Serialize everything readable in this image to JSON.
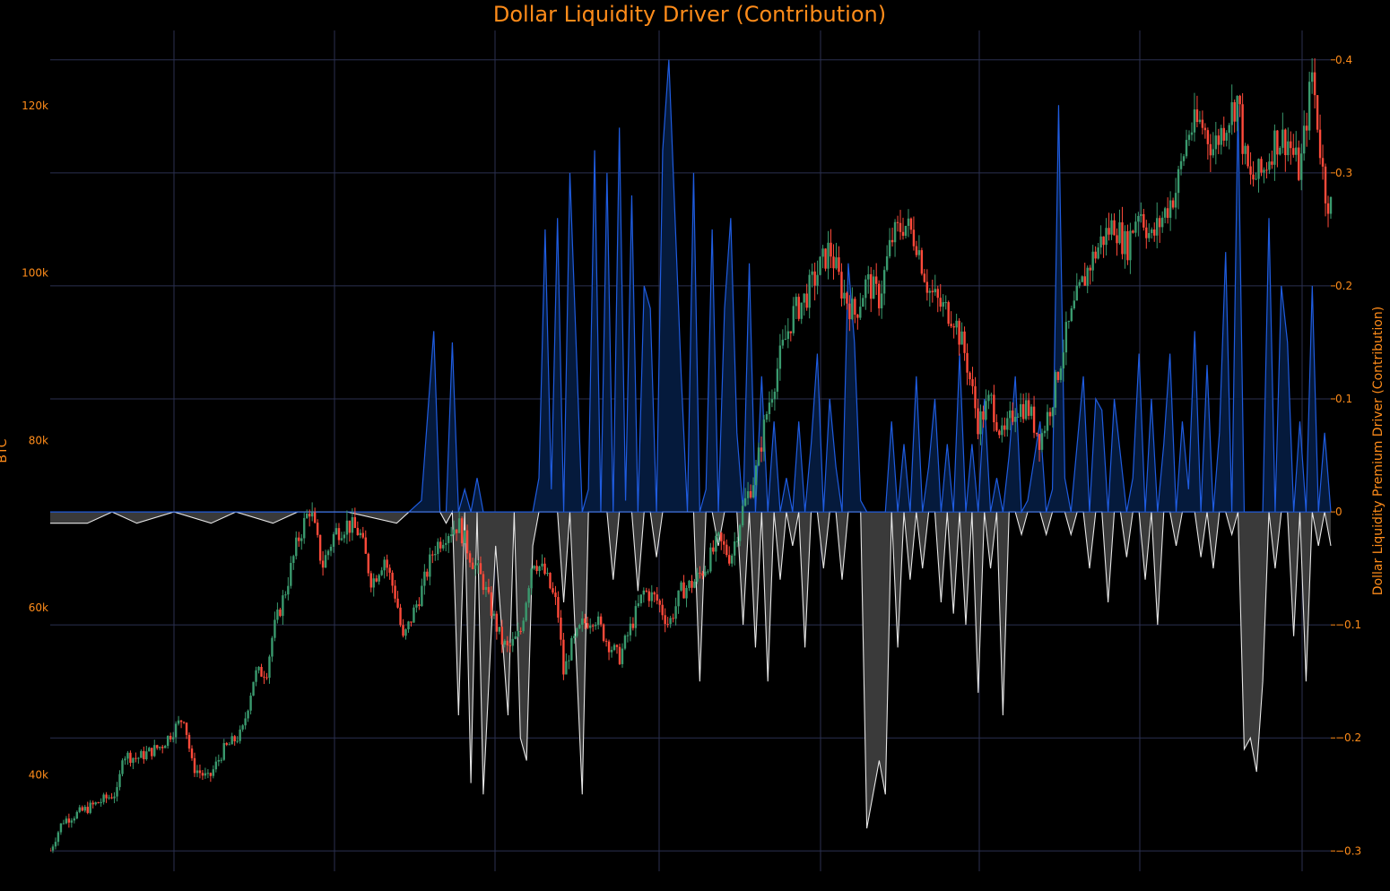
{
  "chart_data": {
    "type": "candlestick+area",
    "title": "Dollar Liquidity Driver (Contribution)",
    "y_left_label": "BTC",
    "y_right_label": "Dollar Liquidity Premium Driver (Contribution)",
    "y_left_ticks": [
      "40k",
      "60k",
      "80k",
      "100k",
      "120k"
    ],
    "y_left_tick_values": [
      40000,
      60000,
      80000,
      100000,
      120000
    ],
    "y_right_ticks": [
      "−0.3",
      "−0.2",
      "−0.1",
      "0",
      "0.1",
      "0.2",
      "0.3",
      "0.4"
    ],
    "y_right_tick_values": [
      -0.3,
      -0.2,
      -0.1,
      0,
      0.1,
      0.2,
      0.3,
      0.4
    ],
    "y_left_range": [
      28500,
      129000
    ],
    "y_right_range": [
      -0.318,
      0.426
    ],
    "grid": true,
    "colors": {
      "increasing": "#3a9a6e",
      "decreasing": "#ff4a3a",
      "positive_line": "#1f5ce0",
      "positive_fill": "#051a3c",
      "negative_line": "#e6e6e6",
      "negative_fill": "#3a3a3a",
      "grid": "#2b3050",
      "axis_text": "#ff8c1a"
    },
    "btc_price_path": [
      [
        0,
        31000
      ],
      [
        0.01,
        34500
      ],
      [
        0.03,
        36000
      ],
      [
        0.055,
        38000
      ],
      [
        0.058,
        42500
      ],
      [
        0.07,
        42000
      ],
      [
        0.09,
        43500
      ],
      [
        0.108,
        47000
      ],
      [
        0.115,
        41000
      ],
      [
        0.128,
        39500
      ],
      [
        0.14,
        43000
      ],
      [
        0.155,
        45000
      ],
      [
        0.165,
        52000
      ],
      [
        0.175,
        52500
      ],
      [
        0.18,
        57000
      ],
      [
        0.19,
        62000
      ],
      [
        0.2,
        68000
      ],
      [
        0.21,
        72000
      ],
      [
        0.22,
        65000
      ],
      [
        0.23,
        69000
      ],
      [
        0.24,
        70000
      ],
      [
        0.25,
        69000
      ],
      [
        0.26,
        63000
      ],
      [
        0.27,
        66000
      ],
      [
        0.28,
        61000
      ],
      [
        0.285,
        56000
      ],
      [
        0.3,
        62000
      ],
      [
        0.31,
        67000
      ],
      [
        0.32,
        69000
      ],
      [
        0.33,
        70000
      ],
      [
        0.34,
        66000
      ],
      [
        0.35,
        63000
      ],
      [
        0.36,
        58000
      ],
      [
        0.365,
        56000
      ],
      [
        0.37,
        55000
      ],
      [
        0.38,
        57000
      ],
      [
        0.39,
        66000
      ],
      [
        0.4,
        64000
      ],
      [
        0.41,
        60000
      ],
      [
        0.415,
        52000
      ],
      [
        0.42,
        55000
      ],
      [
        0.43,
        58000
      ],
      [
        0.44,
        59000
      ],
      [
        0.45,
        56000
      ],
      [
        0.46,
        54000
      ],
      [
        0.47,
        58000
      ],
      [
        0.48,
        62000
      ],
      [
        0.49,
        61000
      ],
      [
        0.5,
        58000
      ],
      [
        0.51,
        62000
      ],
      [
        0.52,
        63000
      ],
      [
        0.53,
        65000
      ],
      [
        0.54,
        68000
      ],
      [
        0.55,
        66000
      ],
      [
        0.56,
        72000
      ],
      [
        0.57,
        76000
      ],
      [
        0.58,
        84000
      ],
      [
        0.59,
        90000
      ],
      [
        0.6,
        95000
      ],
      [
        0.61,
        97000
      ],
      [
        0.62,
        100000
      ],
      [
        0.63,
        103000
      ],
      [
        0.64,
        98000
      ],
      [
        0.65,
        95000
      ],
      [
        0.66,
        99000
      ],
      [
        0.67,
        97000
      ],
      [
        0.68,
        104000
      ],
      [
        0.69,
        106000
      ],
      [
        0.7,
        104000
      ],
      [
        0.71,
        98000
      ],
      [
        0.72,
        96000
      ],
      [
        0.73,
        95000
      ],
      [
        0.74,
        90000
      ],
      [
        0.75,
        82000
      ],
      [
        0.76,
        85000
      ],
      [
        0.77,
        80000
      ],
      [
        0.78,
        84000
      ],
      [
        0.79,
        84000
      ],
      [
        0.8,
        80000
      ],
      [
        0.81,
        85000
      ],
      [
        0.82,
        92000
      ],
      [
        0.83,
        97000
      ],
      [
        0.84,
        101000
      ],
      [
        0.85,
        104000
      ],
      [
        0.86,
        106000
      ],
      [
        0.87,
        103000
      ],
      [
        0.88,
        108000
      ],
      [
        0.89,
        104000
      ],
      [
        0.9,
        107000
      ],
      [
        0.91,
        110000
      ],
      [
        0.92,
        117000
      ],
      [
        0.93,
        118000
      ],
      [
        0.94,
        115000
      ],
      [
        0.95,
        118000
      ],
      [
        0.96,
        121000
      ],
      [
        0.965,
        114000
      ],
      [
        0.97,
        111000
      ],
      [
        0.98,
        112000
      ],
      [
        0.99,
        116000
      ],
      [
        1.0,
        116000
      ],
      [
        1.01,
        112000
      ],
      [
        1.02,
        124000
      ],
      [
        1.03,
        110000
      ],
      [
        1.035,
        108000
      ]
    ],
    "liquidity_series": [
      [
        0,
        -0.01
      ],
      [
        0.03,
        -0.01
      ],
      [
        0.05,
        0
      ],
      [
        0.07,
        -0.01
      ],
      [
        0.1,
        0
      ],
      [
        0.13,
        -0.01
      ],
      [
        0.15,
        0
      ],
      [
        0.18,
        -0.01
      ],
      [
        0.2,
        0
      ],
      [
        0.22,
        0
      ],
      [
        0.24,
        0
      ],
      [
        0.28,
        -0.01
      ],
      [
        0.29,
        0
      ],
      [
        0.3,
        0.01
      ],
      [
        0.31,
        0.16
      ],
      [
        0.315,
        0
      ],
      [
        0.32,
        -0.01
      ],
      [
        0.325,
        0.15
      ],
      [
        0.33,
        -0.18
      ],
      [
        0.335,
        0.02
      ],
      [
        0.34,
        -0.24
      ],
      [
        0.345,
        0.03
      ],
      [
        0.35,
        -0.25
      ],
      [
        0.36,
        -0.03
      ],
      [
        0.37,
        -0.18
      ],
      [
        0.375,
        0
      ],
      [
        0.38,
        -0.2
      ],
      [
        0.385,
        -0.22
      ],
      [
        0.39,
        -0.03
      ],
      [
        0.395,
        0.03
      ],
      [
        0.4,
        0.25
      ],
      [
        0.405,
        0.02
      ],
      [
        0.41,
        0.26
      ],
      [
        0.415,
        -0.08
      ],
      [
        0.42,
        0.3
      ],
      [
        0.43,
        -0.25
      ],
      [
        0.435,
        0.02
      ],
      [
        0.44,
        0.32
      ],
      [
        0.445,
        0
      ],
      [
        0.45,
        0.3
      ],
      [
        0.455,
        -0.06
      ],
      [
        0.46,
        0.34
      ],
      [
        0.465,
        0.01
      ],
      [
        0.47,
        0.28
      ],
      [
        0.475,
        -0.07
      ],
      [
        0.48,
        0.2
      ],
      [
        0.485,
        0.18
      ],
      [
        0.49,
        -0.04
      ],
      [
        0.495,
        0.32
      ],
      [
        0.5,
        0.4
      ],
      [
        0.505,
        0.26
      ],
      [
        0.51,
        0.12
      ],
      [
        0.515,
        0
      ],
      [
        0.52,
        0.3
      ],
      [
        0.525,
        -0.15
      ],
      [
        0.53,
        0.02
      ],
      [
        0.535,
        0.25
      ],
      [
        0.54,
        -0.03
      ],
      [
        0.545,
        0.18
      ],
      [
        0.55,
        0.26
      ],
      [
        0.555,
        0.07
      ],
      [
        0.56,
        -0.1
      ],
      [
        0.565,
        0.22
      ],
      [
        0.57,
        -0.12
      ],
      [
        0.575,
        0.12
      ],
      [
        0.58,
        -0.15
      ],
      [
        0.585,
        0.08
      ],
      [
        0.59,
        -0.06
      ],
      [
        0.595,
        0.03
      ],
      [
        0.6,
        -0.03
      ],
      [
        0.605,
        0.08
      ],
      [
        0.61,
        -0.12
      ],
      [
        0.615,
        0.06
      ],
      [
        0.62,
        0.14
      ],
      [
        0.625,
        -0.05
      ],
      [
        0.63,
        0.1
      ],
      [
        0.635,
        0.04
      ],
      [
        0.64,
        -0.06
      ],
      [
        0.645,
        0.22
      ],
      [
        0.65,
        0.15
      ],
      [
        0.655,
        0.01
      ],
      [
        0.66,
        -0.28
      ],
      [
        0.665,
        -0.25
      ],
      [
        0.67,
        -0.22
      ],
      [
        0.675,
        -0.25
      ],
      [
        0.68,
        0.08
      ],
      [
        0.685,
        -0.12
      ],
      [
        0.69,
        0.06
      ],
      [
        0.695,
        -0.06
      ],
      [
        0.7,
        0.12
      ],
      [
        0.705,
        -0.05
      ],
      [
        0.71,
        0.04
      ],
      [
        0.715,
        0.1
      ],
      [
        0.72,
        -0.08
      ],
      [
        0.725,
        0.06
      ],
      [
        0.73,
        -0.09
      ],
      [
        0.735,
        0.14
      ],
      [
        0.74,
        -0.1
      ],
      [
        0.745,
        0.06
      ],
      [
        0.75,
        -0.16
      ],
      [
        0.755,
        0.1
      ],
      [
        0.76,
        -0.05
      ],
      [
        0.765,
        0.03
      ],
      [
        0.77,
        -0.18
      ],
      [
        0.775,
        0.05
      ],
      [
        0.78,
        0.12
      ],
      [
        0.785,
        -0.02
      ],
      [
        0.79,
        0.01
      ],
      [
        0.8,
        0.08
      ],
      [
        0.805,
        -0.02
      ],
      [
        0.81,
        0.02
      ],
      [
        0.815,
        0.36
      ],
      [
        0.82,
        0.03
      ],
      [
        0.825,
        -0.02
      ],
      [
        0.83,
        0.06
      ],
      [
        0.835,
        0.12
      ],
      [
        0.84,
        -0.05
      ],
      [
        0.845,
        0.1
      ],
      [
        0.85,
        0.09
      ],
      [
        0.855,
        -0.08
      ],
      [
        0.86,
        0.1
      ],
      [
        0.865,
        0.05
      ],
      [
        0.87,
        -0.04
      ],
      [
        0.875,
        0.03
      ],
      [
        0.88,
        0.14
      ],
      [
        0.885,
        -0.06
      ],
      [
        0.89,
        0.1
      ],
      [
        0.895,
        -0.1
      ],
      [
        0.9,
        0.06
      ],
      [
        0.905,
        0.14
      ],
      [
        0.91,
        -0.03
      ],
      [
        0.915,
        0.08
      ],
      [
        0.92,
        0.02
      ],
      [
        0.925,
        0.16
      ],
      [
        0.93,
        -0.04
      ],
      [
        0.935,
        0.13
      ],
      [
        0.94,
        -0.05
      ],
      [
        0.945,
        0.07
      ],
      [
        0.95,
        0.23
      ],
      [
        0.955,
        -0.02
      ],
      [
        0.96,
        0.36
      ],
      [
        0.965,
        -0.21
      ],
      [
        0.97,
        -0.2
      ],
      [
        0.975,
        -0.23
      ],
      [
        0.98,
        -0.15
      ],
      [
        0.985,
        0.26
      ],
      [
        0.99,
        -0.05
      ],
      [
        0.995,
        0.2
      ],
      [
        1.0,
        0.15
      ],
      [
        1.005,
        -0.11
      ],
      [
        1.01,
        0.08
      ],
      [
        1.015,
        -0.15
      ],
      [
        1.02,
        0.2
      ],
      [
        1.025,
        -0.03
      ],
      [
        1.03,
        0.07
      ],
      [
        1.035,
        -0.03
      ]
    ]
  }
}
